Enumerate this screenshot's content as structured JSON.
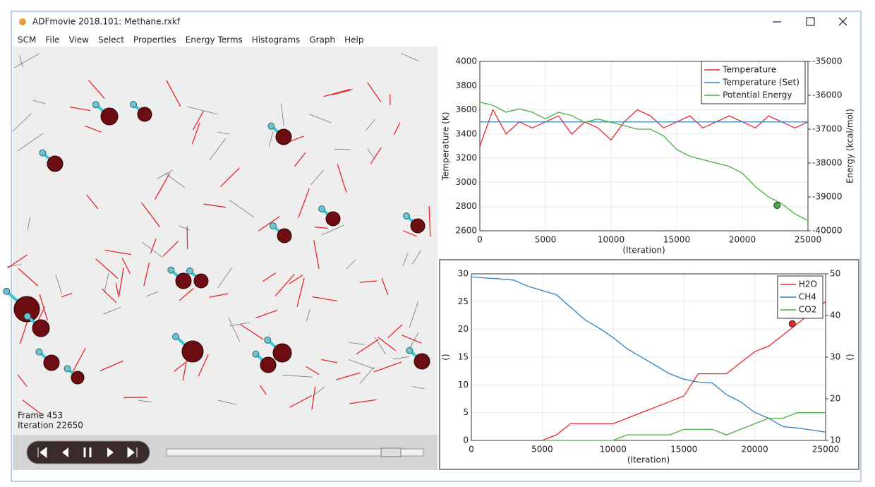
{
  "window": {
    "title": "ADFmovie 2018.101: Methane.rxkf"
  },
  "menu": [
    "SCM",
    "File",
    "View",
    "Select",
    "Properties",
    "Energy Terms",
    "Histograms",
    "Graph",
    "Help"
  ],
  "viewer": {
    "frame": "Frame 453",
    "iteration": "Iteration 22650"
  },
  "chart_data": [
    {
      "type": "line",
      "xlabel": "(Iteration)",
      "ylabel": "Temperature (K)",
      "y2label": "Energy (kcal/mol)",
      "x": [
        0,
        1000,
        2000,
        3000,
        4000,
        5000,
        6000,
        7000,
        8000,
        9000,
        10000,
        11000,
        12000,
        13000,
        14000,
        15000,
        16000,
        17000,
        18000,
        19000,
        20000,
        21000,
        22000,
        23000,
        24000,
        25000
      ],
      "xlim": [
        0,
        25000
      ],
      "xticks": [
        0,
        5000,
        10000,
        15000,
        20000,
        25000
      ],
      "ylim": [
        2600,
        4000
      ],
      "yticks": [
        2600,
        2800,
        3000,
        3200,
        3400,
        3600,
        3800,
        4000
      ],
      "y2lim": [
        -40000,
        -35000
      ],
      "y2ticks": [
        -40000,
        -39000,
        -38000,
        -37000,
        -36000,
        -35000
      ],
      "grid": true,
      "legend": "top-right",
      "series": [
        {
          "name": "Temperature",
          "color": "#e8262b",
          "values": [
            3300,
            3600,
            3400,
            3500,
            3450,
            3500,
            3550,
            3400,
            3500,
            3450,
            3350,
            3500,
            3600,
            3550,
            3450,
            3500,
            3550,
            3450,
            3500,
            3550,
            3500,
            3450,
            3550,
            3500,
            3450,
            3500
          ]
        },
        {
          "name": "Temperature (Set)",
          "color": "#2f7fc1",
          "values": [
            3500,
            3500,
            3500,
            3500,
            3500,
            3500,
            3500,
            3500,
            3500,
            3500,
            3500,
            3500,
            3500,
            3500,
            3500,
            3500,
            3500,
            3500,
            3500,
            3500,
            3500,
            3500,
            3500,
            3500,
            3500,
            3500
          ]
        },
        {
          "name": "Potential Energy",
          "color": "#4cae46",
          "axis": "y2",
          "values": [
            -36200,
            -36300,
            -36500,
            -36400,
            -36500,
            -36700,
            -36500,
            -36600,
            -36800,
            -36700,
            -36800,
            -36900,
            -37000,
            -37000,
            -37200,
            -37600,
            -37800,
            -37900,
            -38000,
            -38100,
            -38300,
            -38700,
            -39000,
            -39200,
            -39500,
            -39700
          ]
        }
      ],
      "marker": {
        "x": 22650,
        "y": -39250,
        "axis": "y2",
        "color": "#4cae46"
      }
    },
    {
      "type": "line",
      "xlabel": "(Iteration)",
      "ylabel": "()",
      "y2label": "()",
      "x": [
        0,
        1000,
        2000,
        3000,
        4000,
        5000,
        6000,
        7000,
        8000,
        9000,
        10000,
        11000,
        12000,
        13000,
        14000,
        15000,
        16000,
        17000,
        18000,
        19000,
        20000,
        21000,
        22000,
        23000,
        24000,
        25000
      ],
      "xlim": [
        0,
        25000
      ],
      "xticks": [
        0,
        5000,
        10000,
        15000,
        20000,
        25000
      ],
      "ylim": [
        0,
        30
      ],
      "yticks": [
        0,
        5,
        10,
        15,
        20,
        25,
        30
      ],
      "y2lim": [
        10,
        50
      ],
      "y2ticks": [
        10,
        20,
        30,
        40,
        50
      ],
      "grid": true,
      "legend": "top-right",
      "series": [
        {
          "name": "H2O",
          "color": "#e8262b",
          "values": [
            null,
            null,
            null,
            null,
            null,
            0,
            1,
            3,
            3,
            3,
            3,
            4,
            5,
            6,
            7,
            8,
            12,
            12,
            12,
            14,
            16,
            17,
            19,
            21,
            23,
            25
          ]
        },
        {
          "name": "CH4",
          "color": "#2f7fc1",
          "axis": "y2",
          "values": [
            49.3,
            49,
            48.8,
            48.5,
            47,
            46,
            45,
            42,
            39,
            37,
            34.7,
            32,
            30,
            28,
            26,
            24.7,
            24,
            23.8,
            21,
            19.3,
            16.7,
            15.3,
            13.3,
            13,
            12.5,
            12
          ]
        },
        {
          "name": "CO2",
          "color": "#4cae46",
          "values": [
            null,
            null,
            null,
            null,
            null,
            0,
            0,
            0,
            0,
            0,
            0,
            1,
            1,
            1,
            1,
            2,
            2,
            2,
            1,
            2,
            3,
            4,
            4,
            5,
            5,
            5
          ]
        }
      ],
      "marker": {
        "x": 22650,
        "y": 21,
        "color": "#e8262b"
      }
    }
  ]
}
